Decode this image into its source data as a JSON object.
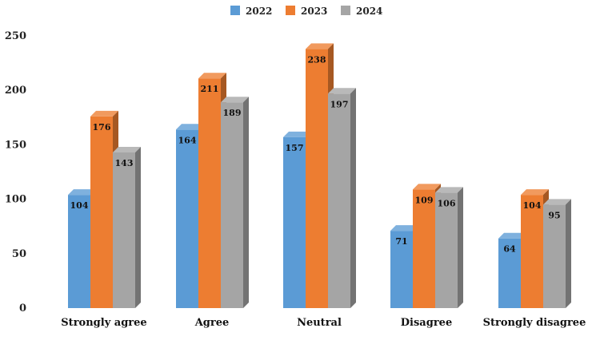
{
  "chart_data": {
    "type": "bar",
    "title": "",
    "xlabel": "",
    "ylabel": "",
    "categories": [
      "Strongly agree",
      "Agree",
      "Neutral",
      "Disagree",
      "Strongly disagree"
    ],
    "series": [
      {
        "name": "2022",
        "values": [
          104,
          164,
          157,
          71,
          64
        ],
        "color": "#5B9BD5"
      },
      {
        "name": "2023",
        "values": [
          176,
          211,
          238,
          109,
          104
        ],
        "color": "#ED7D31"
      },
      {
        "name": "2024",
        "values": [
          143,
          189,
          197,
          106,
          95
        ],
        "color": "#A5A5A5"
      }
    ],
    "ylim": [
      0,
      250
    ],
    "yticks": [
      0,
      50,
      100,
      150,
      200,
      250
    ],
    "grid": false,
    "legend": "top-center",
    "style": "3d-column"
  }
}
